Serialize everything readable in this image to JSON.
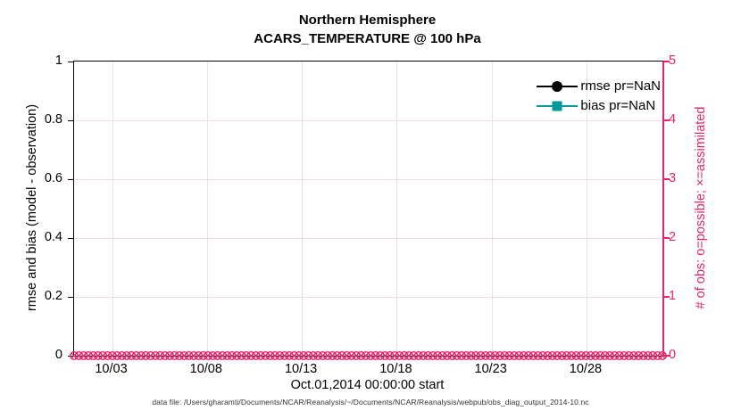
{
  "title": {
    "line1": "Northern Hemisphere",
    "line2": "ACARS_TEMPERATURE @ 100 hPa"
  },
  "axes": {
    "left": {
      "label": "rmse and bias (model - observation)",
      "tick_labels": [
        "0",
        "0.2",
        "0.4",
        "0.6",
        "0.8",
        "1"
      ],
      "color": "#000000"
    },
    "right": {
      "label": "# of obs: o=possible; ×=assimilated",
      "tick_labels": [
        "0",
        "1",
        "2",
        "3",
        "4",
        "5"
      ],
      "color": "#e3256b"
    },
    "x": {
      "label": "Oct.01,2014 00:00:00 start",
      "tick_labels": [
        "10/03",
        "10/08",
        "10/13",
        "10/18",
        "10/23",
        "10/28"
      ],
      "tick_days": [
        2,
        7,
        12,
        17,
        22,
        27
      ],
      "range_days": [
        0,
        31
      ]
    }
  },
  "legend": [
    {
      "label": "rmse pr=NaN",
      "marker": "circle",
      "color": "#000000"
    },
    {
      "label": "bias pr=NaN",
      "marker": "square",
      "color": "#009999"
    }
  ],
  "footer": "data file: /Users/gharamti/Documents/NCAR/Reanalysis/~/Documents/NCAR/Reanalysis/webpub/obs_diag_output_2014-10.nc",
  "colors": {
    "accent": "#e3256b",
    "teal": "#009999",
    "grid_vertical": "#e4e2ea",
    "grid_horizontal": "#f6d9e6"
  },
  "chart_data": {
    "type": "line",
    "title": "Northern Hemisphere",
    "subtitle": "ACARS_TEMPERATURE @ 100 hPa",
    "xlabel": "Oct.01,2014 00:00:00 start",
    "ylabel_left": "rmse and bias (model - observation)",
    "ylabel_right": "# of obs: o=possible; ×=assimilated",
    "ylim_left": [
      0,
      1
    ],
    "ylim_right": [
      0,
      5
    ],
    "left_ticks": [
      0,
      0.2,
      0.4,
      0.6,
      0.8,
      1
    ],
    "right_ticks": [
      0,
      1,
      2,
      3,
      4,
      5
    ],
    "x_ticks": [
      "10/03",
      "10/08",
      "10/13",
      "10/18",
      "10/23",
      "10/28"
    ],
    "x_tick_days_from_start": [
      2,
      7,
      12,
      17,
      22,
      27
    ],
    "x_range_days": [
      0,
      31
    ],
    "grid": true,
    "legend_position": "top-right inside, no box",
    "series": [
      {
        "name": "rmse pr=NaN",
        "axis": "left",
        "marker": "filled-circle",
        "color": "#000000",
        "values": "all NaN — no curve plotted"
      },
      {
        "name": "bias pr=NaN",
        "axis": "left",
        "marker": "filled-square",
        "color": "#009999",
        "values": "all NaN — no curve plotted"
      },
      {
        "name": "# of obs possible (o markers)",
        "axis": "right",
        "marker": "o",
        "color": "#e3256b",
        "constant_value": 0,
        "marker_count": 124,
        "note": "dense overlapping markers along y=0 across whole month"
      },
      {
        "name": "# of obs assimilated (× markers)",
        "axis": "right",
        "marker": "×",
        "color": "#e3256b",
        "constant_value": 0,
        "marker_count": 124,
        "note": "dense overlapping markers along y=0 across whole month"
      }
    ]
  }
}
